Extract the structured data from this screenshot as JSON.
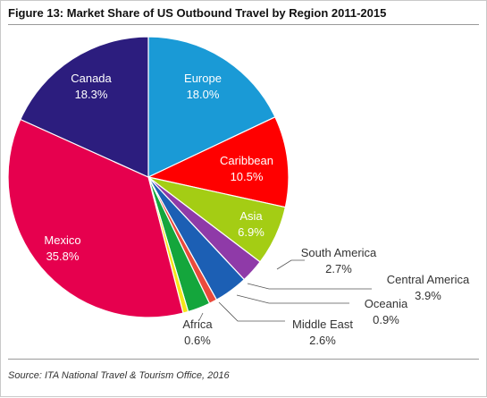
{
  "figure": {
    "title": "Figure 13: Market Share of US Outbound Travel by Region 2011-2015",
    "source": "Source: ITA National Travel & Tourism Office, 2016"
  },
  "chart_data": {
    "type": "pie",
    "title": "Figure 13: Market Share of US Outbound Travel by Region 2011-2015",
    "start_angle_deg": 0,
    "direction": "clockwise",
    "slices": [
      {
        "label": "Europe",
        "value": 18.0,
        "value_label": "18.0%",
        "color": "#1a9ad6",
        "label_color": "#ffffff",
        "label_inside": true
      },
      {
        "label": "Caribbean",
        "value": 10.5,
        "value_label": "10.5%",
        "color": "#ff0000",
        "label_color": "#ffffff",
        "label_inside": true
      },
      {
        "label": "Asia",
        "value": 6.9,
        "value_label": "6.9%",
        "color": "#a4cd14",
        "label_color": "#ffffff",
        "label_inside": true
      },
      {
        "label": "South America",
        "value": 2.7,
        "value_label": "2.7%",
        "color": "#8f3aa8",
        "label_color": "#333333",
        "label_inside": false
      },
      {
        "label": "Central America",
        "value": 3.9,
        "value_label": "3.9%",
        "color": "#1c5fb4",
        "label_color": "#333333",
        "label_inside": false
      },
      {
        "label": "Oceania",
        "value": 0.9,
        "value_label": "0.9%",
        "color": "#ea4a3c",
        "label_color": "#333333",
        "label_inside": false
      },
      {
        "label": "Middle East",
        "value": 2.6,
        "value_label": "2.6%",
        "color": "#14a63c",
        "label_color": "#333333",
        "label_inside": false
      },
      {
        "label": "Africa",
        "value": 0.6,
        "value_label": "0.6%",
        "color": "#f5e61a",
        "label_color": "#333333",
        "label_inside": false
      },
      {
        "label": "Mexico",
        "value": 35.8,
        "value_label": "35.8%",
        "color": "#e6004e",
        "label_color": "#ffffff",
        "label_inside": true
      },
      {
        "label": "Canada",
        "value": 18.3,
        "value_label": "18.3%",
        "color": "#2c1d7e",
        "label_color": "#ffffff",
        "label_inside": true
      }
    ]
  }
}
